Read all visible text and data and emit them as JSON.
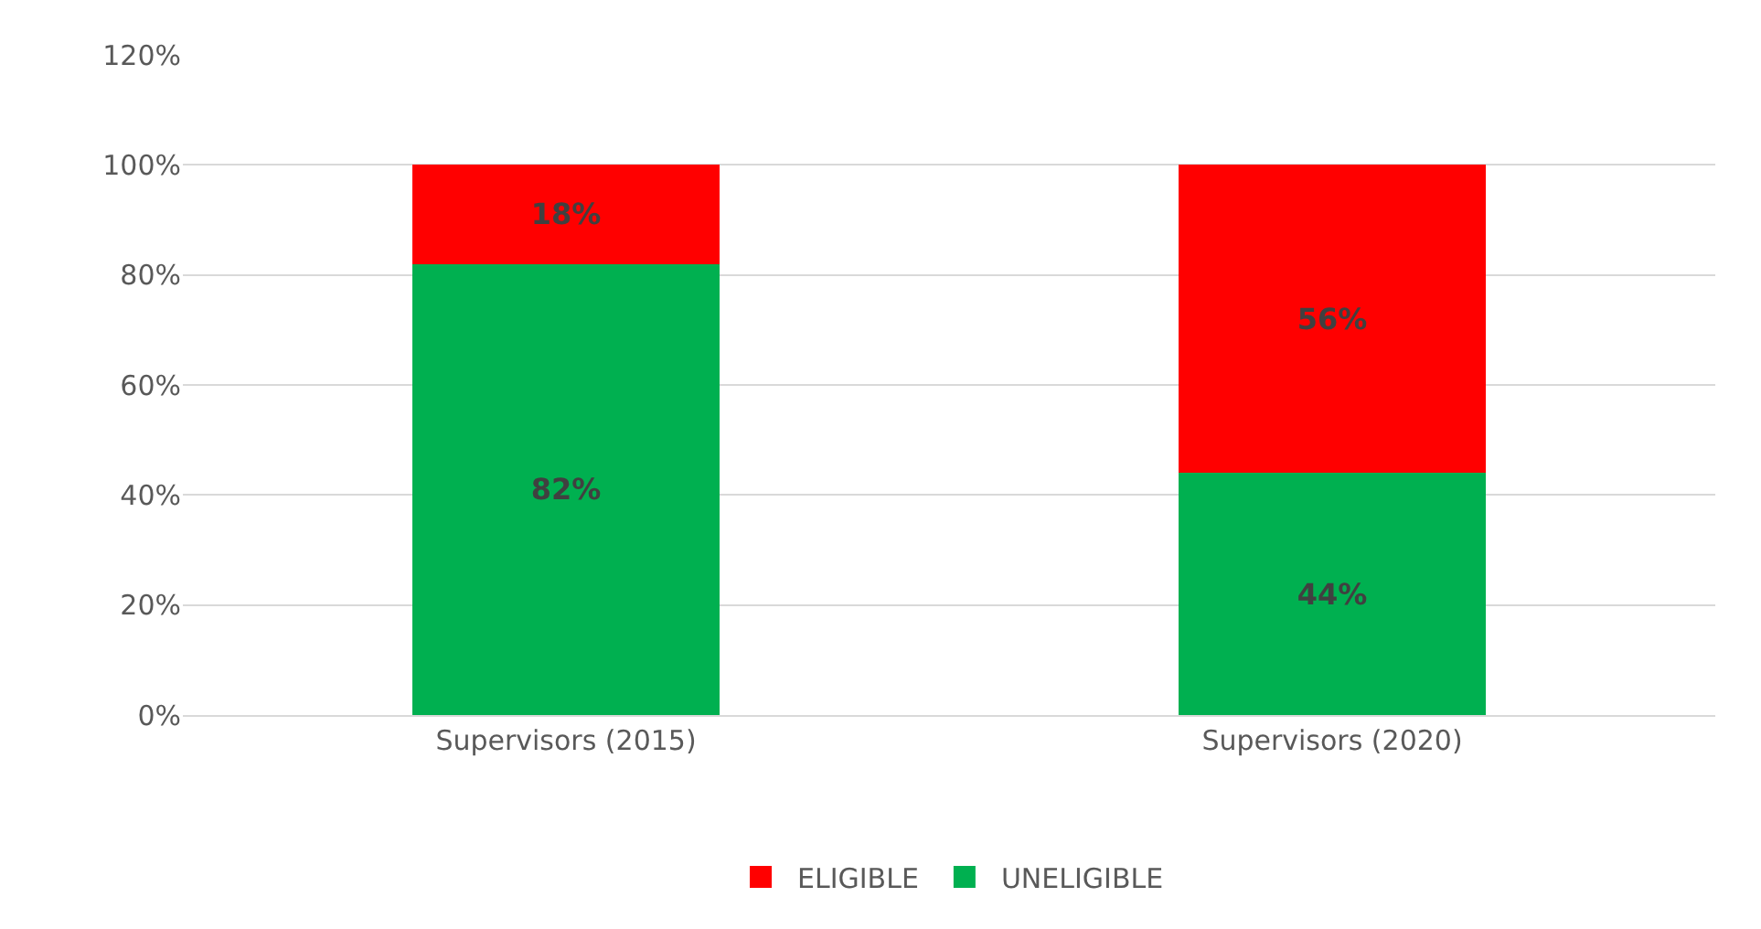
{
  "chart_data": {
    "type": "bar",
    "stacked": true,
    "categories": [
      "Supervisors (2015)",
      "Supervisors (2020)"
    ],
    "series": [
      {
        "name": "UNELIGIBLE",
        "color": "#00b050",
        "values": [
          82,
          44
        ],
        "value_labels": [
          "82%",
          "44%"
        ]
      },
      {
        "name": "ELIGIBLE",
        "color": "#ff0000",
        "values": [
          18,
          56
        ],
        "value_labels": [
          "18%",
          "56%"
        ]
      }
    ],
    "ylim": [
      0,
      120
    ],
    "yticks": [
      {
        "value": 0,
        "label": "0%"
      },
      {
        "value": 20,
        "label": "20%"
      },
      {
        "value": 40,
        "label": "40%"
      },
      {
        "value": 60,
        "label": "60%"
      },
      {
        "value": 80,
        "label": "80%"
      },
      {
        "value": 100,
        "label": "100%"
      },
      {
        "value": 120,
        "label": "120%"
      }
    ],
    "grid": "y",
    "legend": "bottom"
  }
}
